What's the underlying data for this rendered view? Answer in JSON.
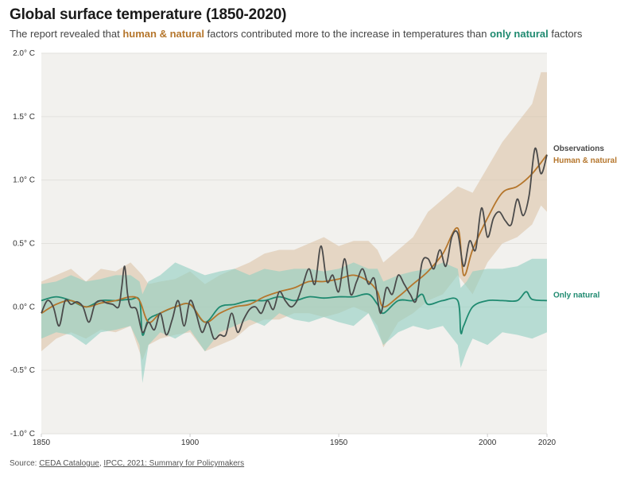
{
  "header": {
    "title": "Global surface temperature (1850-2020)",
    "subtitle_parts": {
      "p1": "The report revealed that ",
      "human_natural": "human & natural",
      "p2": " factors contributed more to the increase in temperatures than ",
      "only_natural": "only natural",
      "p3": " factors"
    }
  },
  "source": {
    "prefix": "Source: ",
    "link1": "CEDA Catalogue",
    "sep": ", ",
    "link2": "IPCC, 2021: Summary for Policymakers"
  },
  "colors": {
    "observations": "#4a4a4a",
    "human_natural": "#b5762c",
    "only_natural": "#1f8a70",
    "human_natural_band": "#dcc4a8",
    "only_natural_band": "#8fcfc2",
    "plot_bg": "#f2f1ee",
    "gridline": "#e2e1dd"
  },
  "chart_data": {
    "type": "line",
    "title": "Global surface temperature (1850-2020)",
    "xlabel": "",
    "ylabel": "",
    "xlim": [
      1850,
      2020
    ],
    "ylim": [
      -1.0,
      2.0
    ],
    "grid": true,
    "x_ticks": [
      {
        "value": 1850,
        "label": "1850"
      },
      {
        "value": 1900,
        "label": "1900"
      },
      {
        "value": 1950,
        "label": "1950"
      },
      {
        "value": 2000,
        "label": "2000"
      },
      {
        "value": 2020,
        "label": "2020"
      }
    ],
    "y_ticks": [
      {
        "value": 2.0,
        "label": "2.0° C"
      },
      {
        "value": 1.5,
        "label": "1.5° C"
      },
      {
        "value": 1.0,
        "label": "1.0° C"
      },
      {
        "value": 0.5,
        "label": "0.5° C"
      },
      {
        "value": 0.0,
        "label": "0.0° C"
      },
      {
        "value": -0.5,
        "label": "-0.5° C"
      },
      {
        "value": -1.0,
        "label": "-1.0° C"
      }
    ],
    "legend_placement": "right (direct labels at line ends)",
    "series": [
      {
        "name": "Observations",
        "key": "observations",
        "x": [
          1850,
          1852,
          1854,
          1856,
          1858,
          1860,
          1862,
          1864,
          1866,
          1868,
          1870,
          1872,
          1874,
          1876,
          1877,
          1878,
          1879,
          1880,
          1882,
          1884,
          1886,
          1888,
          1890,
          1892,
          1894,
          1896,
          1898,
          1900,
          1902,
          1904,
          1906,
          1908,
          1910,
          1912,
          1914,
          1916,
          1918,
          1920,
          1922,
          1924,
          1926,
          1928,
          1930,
          1932,
          1934,
          1936,
          1938,
          1940,
          1942,
          1944,
          1946,
          1948,
          1950,
          1952,
          1954,
          1956,
          1958,
          1960,
          1962,
          1964,
          1966,
          1968,
          1970,
          1972,
          1974,
          1976,
          1978,
          1980,
          1982,
          1984,
          1986,
          1988,
          1990,
          1992,
          1994,
          1996,
          1998,
          2000,
          2002,
          2004,
          2006,
          2008,
          2010,
          2012,
          2014,
          2016,
          2018,
          2020
        ],
        "y": [
          -0.05,
          0.05,
          0.0,
          -0.15,
          0.05,
          0.02,
          0.04,
          0.0,
          -0.12,
          0.02,
          0.05,
          0.03,
          0.02,
          0.0,
          0.15,
          0.32,
          0.1,
          0.0,
          -0.02,
          -0.2,
          -0.12,
          -0.18,
          -0.05,
          -0.22,
          -0.1,
          0.05,
          -0.15,
          0.05,
          -0.05,
          -0.2,
          -0.12,
          -0.25,
          -0.22,
          -0.22,
          -0.05,
          -0.2,
          -0.1,
          -0.02,
          0.0,
          -0.05,
          0.05,
          -0.02,
          0.12,
          0.05,
          0.0,
          0.05,
          0.18,
          0.3,
          0.18,
          0.48,
          0.2,
          0.25,
          0.12,
          0.38,
          0.1,
          0.2,
          0.3,
          0.18,
          0.22,
          -0.05,
          0.15,
          0.1,
          0.25,
          0.18,
          0.1,
          0.05,
          0.35,
          0.38,
          0.3,
          0.45,
          0.32,
          0.55,
          0.58,
          0.32,
          0.52,
          0.45,
          0.78,
          0.55,
          0.7,
          0.75,
          0.68,
          0.65,
          0.85,
          0.72,
          0.88,
          1.25,
          1.05,
          1.2
        ]
      },
      {
        "name": "Human & natural",
        "key": "human_natural",
        "x": [
          1850,
          1855,
          1860,
          1865,
          1870,
          1875,
          1880,
          1883,
          1886,
          1890,
          1895,
          1900,
          1905,
          1910,
          1915,
          1920,
          1925,
          1930,
          1935,
          1940,
          1945,
          1950,
          1955,
          1960,
          1963,
          1965,
          1970,
          1975,
          1980,
          1985,
          1990,
          1992,
          1995,
          2000,
          2005,
          2010,
          2015,
          2020
        ],
        "y": [
          -0.05,
          0.02,
          0.05,
          0.0,
          0.03,
          0.05,
          0.08,
          0.05,
          -0.12,
          -0.05,
          0.0,
          0.02,
          -0.12,
          -0.05,
          0.0,
          0.02,
          0.08,
          0.12,
          0.15,
          0.2,
          0.2,
          0.22,
          0.25,
          0.2,
          0.12,
          0.0,
          0.08,
          0.18,
          0.28,
          0.42,
          0.62,
          0.25,
          0.45,
          0.7,
          0.9,
          0.95,
          1.05,
          1.2
        ]
      },
      {
        "name": "Only natural",
        "key": "only_natural",
        "x": [
          1850,
          1855,
          1860,
          1865,
          1870,
          1875,
          1880,
          1883,
          1884,
          1886,
          1890,
          1895,
          1900,
          1905,
          1910,
          1915,
          1920,
          1925,
          1930,
          1935,
          1940,
          1945,
          1950,
          1955,
          1960,
          1963,
          1965,
          1970,
          1975,
          1978,
          1980,
          1985,
          1990,
          1991,
          1992,
          1995,
          2000,
          2005,
          2010,
          2013,
          2015,
          2020
        ],
        "y": [
          0.05,
          0.08,
          0.05,
          0.0,
          0.05,
          0.05,
          0.06,
          0.05,
          -0.22,
          -0.1,
          -0.05,
          0.0,
          0.02,
          -0.12,
          0.0,
          0.02,
          0.05,
          0.05,
          0.08,
          0.05,
          0.08,
          0.07,
          0.08,
          0.08,
          0.1,
          0.02,
          -0.05,
          0.05,
          0.05,
          0.1,
          0.02,
          0.05,
          0.05,
          -0.2,
          -0.15,
          0.0,
          0.05,
          0.05,
          0.05,
          0.12,
          0.06,
          0.05
        ]
      }
    ],
    "bands": [
      {
        "name": "Human & natural range",
        "key": "human_natural_band",
        "x": [
          1850,
          1855,
          1860,
          1865,
          1870,
          1875,
          1880,
          1884,
          1886,
          1890,
          1895,
          1900,
          1905,
          1910,
          1915,
          1920,
          1925,
          1930,
          1935,
          1940,
          1945,
          1950,
          1955,
          1960,
          1963,
          1965,
          1970,
          1975,
          1980,
          1985,
          1990,
          1995,
          2000,
          2005,
          2010,
          2015,
          2018,
          2020
        ],
        "low": [
          -0.35,
          -0.25,
          -0.2,
          -0.25,
          -0.18,
          -0.2,
          -0.15,
          -0.42,
          -0.3,
          -0.25,
          -0.22,
          -0.2,
          -0.35,
          -0.3,
          -0.25,
          -0.15,
          -0.1,
          -0.1,
          -0.05,
          -0.05,
          -0.08,
          -0.05,
          0.0,
          -0.05,
          -0.15,
          -0.32,
          -0.12,
          -0.05,
          0.05,
          0.1,
          0.25,
          0.1,
          0.35,
          0.5,
          0.55,
          0.65,
          0.8,
          0.75
        ],
        "high": [
          0.2,
          0.25,
          0.3,
          0.2,
          0.3,
          0.28,
          0.35,
          0.25,
          0.18,
          0.2,
          0.22,
          0.28,
          0.18,
          0.25,
          0.3,
          0.35,
          0.42,
          0.45,
          0.45,
          0.5,
          0.55,
          0.48,
          0.52,
          0.52,
          0.45,
          0.35,
          0.45,
          0.55,
          0.75,
          0.85,
          0.95,
          0.9,
          1.1,
          1.3,
          1.45,
          1.6,
          1.85,
          1.85
        ]
      },
      {
        "name": "Only natural range",
        "key": "only_natural_band",
        "x": [
          1850,
          1855,
          1860,
          1865,
          1870,
          1875,
          1880,
          1883,
          1884,
          1886,
          1890,
          1895,
          1900,
          1905,
          1910,
          1915,
          1920,
          1925,
          1930,
          1935,
          1940,
          1945,
          1950,
          1955,
          1960,
          1963,
          1965,
          1970,
          1975,
          1980,
          1985,
          1990,
          1991,
          1993,
          1995,
          2000,
          2005,
          2010,
          2015,
          2020
        ],
        "low": [
          -0.25,
          -0.2,
          -0.22,
          -0.3,
          -0.2,
          -0.18,
          -0.15,
          -0.3,
          -0.6,
          -0.3,
          -0.2,
          -0.25,
          -0.18,
          -0.35,
          -0.2,
          -0.15,
          -0.1,
          -0.15,
          -0.05,
          -0.1,
          -0.12,
          -0.08,
          -0.12,
          -0.15,
          -0.05,
          -0.2,
          -0.3,
          -0.2,
          -0.15,
          -0.18,
          -0.15,
          -0.3,
          -0.48,
          -0.35,
          -0.25,
          -0.3,
          -0.2,
          -0.22,
          -0.25,
          -0.2
        ],
        "high": [
          0.18,
          0.2,
          0.25,
          0.2,
          0.22,
          0.25,
          0.25,
          0.2,
          0.1,
          0.2,
          0.25,
          0.35,
          0.3,
          0.25,
          0.28,
          0.3,
          0.25,
          0.3,
          0.28,
          0.3,
          0.3,
          0.28,
          0.3,
          0.35,
          0.3,
          0.3,
          0.2,
          0.25,
          0.28,
          0.3,
          0.35,
          0.3,
          0.15,
          0.2,
          0.28,
          0.3,
          0.3,
          0.32,
          0.38,
          0.38
        ]
      }
    ],
    "annotations": [
      {
        "text": "Observations",
        "series": "observations",
        "at_value": 1.26
      },
      {
        "text": "Human & natural",
        "series": "human_natural",
        "at_value": 1.16
      },
      {
        "text": "Only natural",
        "series": "only_natural",
        "at_value": 0.05
      }
    ]
  }
}
